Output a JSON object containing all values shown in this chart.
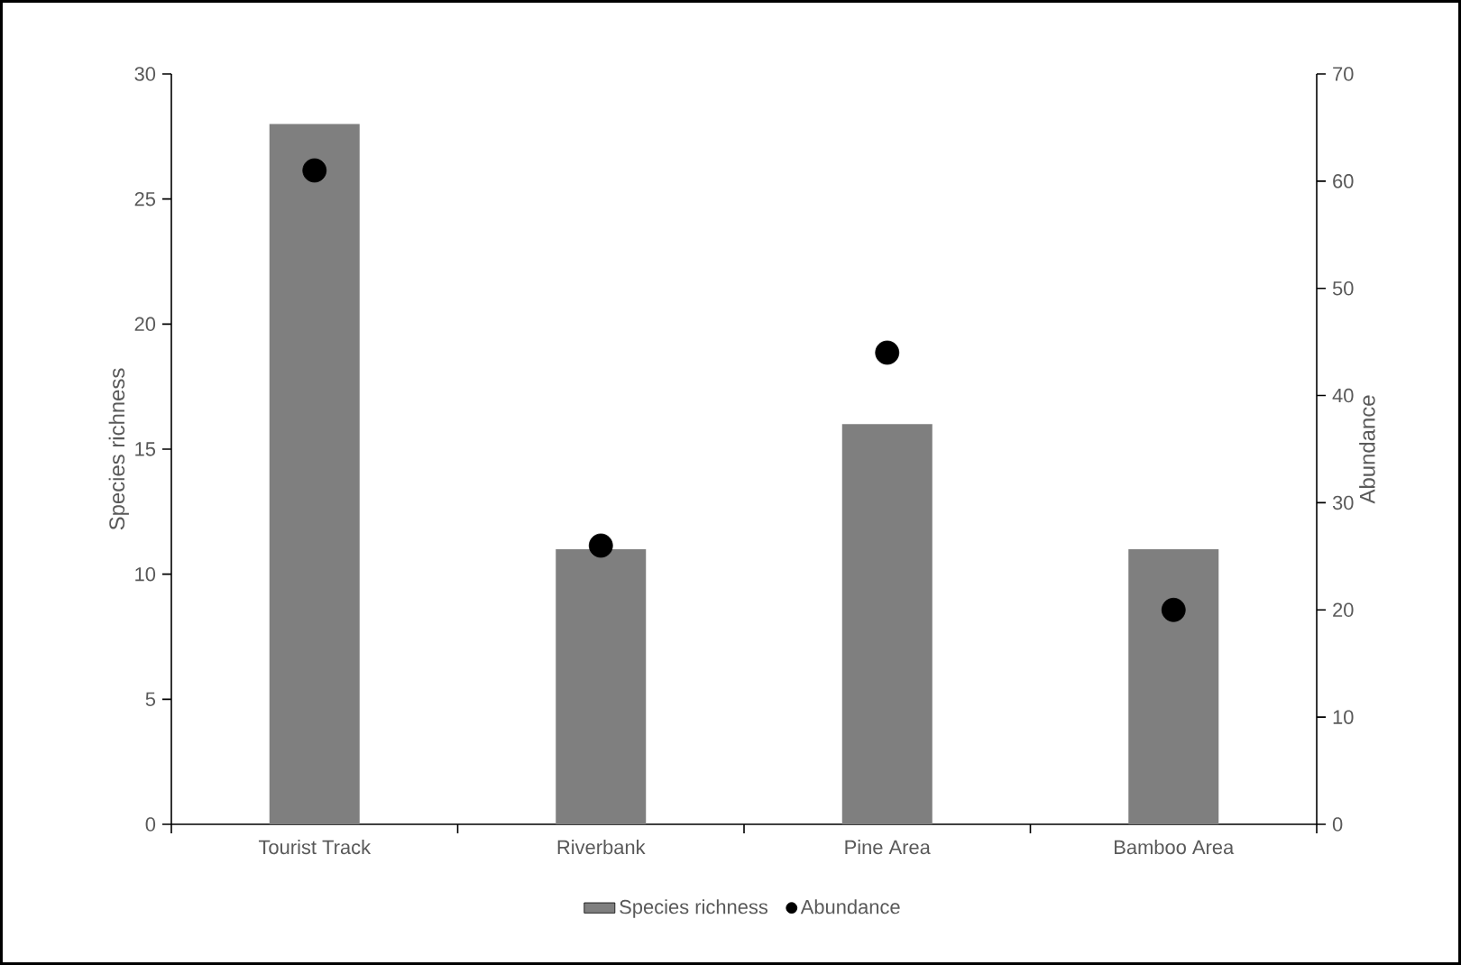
{
  "chart_data": {
    "type": "bar",
    "categories": [
      "Tourist Track",
      "Riverbank",
      "Pine Area",
      "Bamboo Area"
    ],
    "series": [
      {
        "name": "Species richness",
        "color": "#7f7f7f",
        "values": [
          28,
          11,
          16,
          11
        ]
      },
      {
        "name": "Abundance",
        "type": "scatter",
        "axis": "y2",
        "color": "#000000",
        "values": [
          61,
          26,
          44,
          20
        ]
      }
    ],
    "ylabel": "Species richness",
    "y2label": "Abundance",
    "ylim": [
      0,
      30
    ],
    "yticks": [
      0,
      5,
      10,
      15,
      20,
      25,
      30
    ],
    "y2lim": [
      0,
      70
    ],
    "y2ticks": [
      0,
      10,
      20,
      30,
      40,
      50,
      60,
      70
    ],
    "legend": "bottom",
    "marker": "circle",
    "grid": false
  }
}
